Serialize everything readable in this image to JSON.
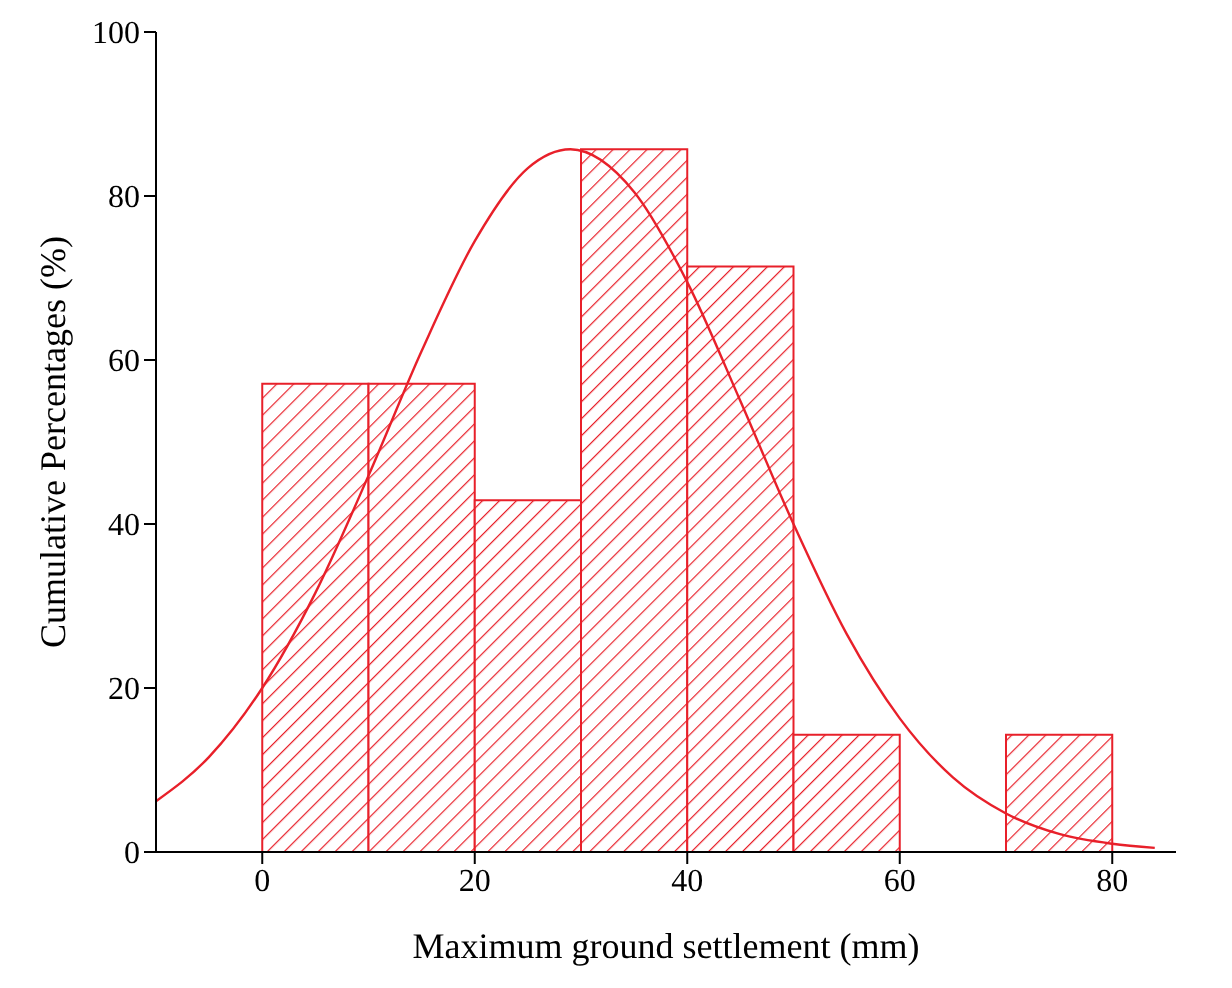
{
  "chart_data": {
    "type": "histogram",
    "xlabel": "Maximum ground settlement (mm)",
    "ylabel": "Cumulative Percentages (%)",
    "bins": [
      0,
      10,
      20,
      30,
      40,
      50,
      60,
      70,
      80
    ],
    "values": [
      57.1,
      57.1,
      42.9,
      85.7,
      71.4,
      14.3,
      0,
      14.3
    ],
    "color": "#e8202a",
    "series": [
      {
        "type": "line",
        "color": "#e8202a",
        "x": [
          -10,
          -5,
          0,
          5,
          10,
          15,
          20,
          25,
          29,
          35,
          40,
          45,
          50,
          55,
          60,
          65,
          70,
          75,
          80,
          84
        ],
        "values": [
          6.2,
          11.6,
          20.0,
          31.6,
          45.9,
          61.1,
          74.5,
          83.4,
          85.7,
          80.5,
          69.5,
          55.0,
          40.0,
          26.6,
          16.3,
          9.1,
          4.7,
          2.2,
          1.0,
          0.5
        ]
      }
    ],
    "xlim": [
      -10,
      86
    ],
    "xticks": [
      0,
      20,
      40,
      60,
      80
    ],
    "ylim": [
      0,
      100
    ],
    "yticks": [
      0,
      20,
      40,
      60,
      80,
      100
    ],
    "grid": false
  }
}
